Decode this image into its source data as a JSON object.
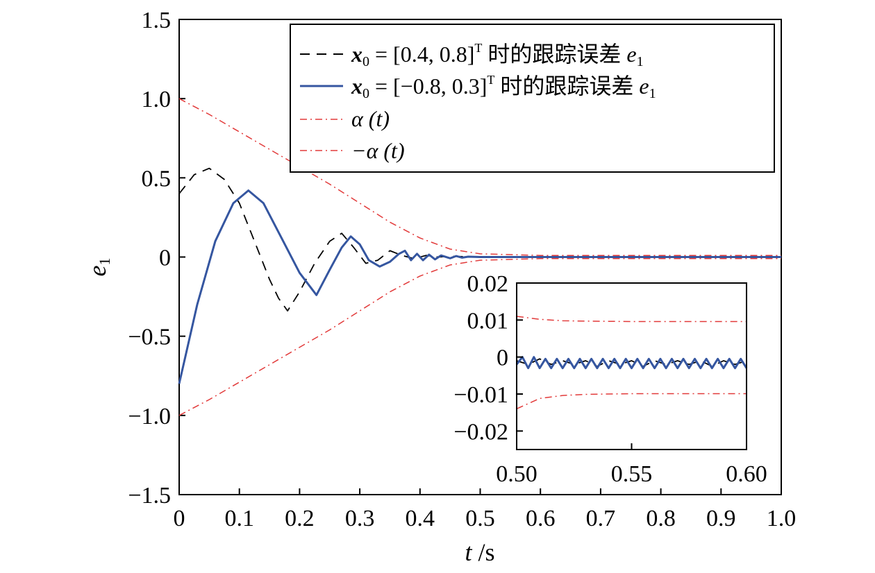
{
  "chart_data": [
    {
      "type": "line",
      "title": "",
      "xlabel": "t /s",
      "ylabel": "e1",
      "ylabel_main": "e",
      "ylabel_sub": "1",
      "xlabel_italic": "t",
      "xlabel_unit": " /s",
      "xlim": [
        0,
        1.0
      ],
      "ylim": [
        -1.5,
        1.5
      ],
      "xticks": [
        0,
        0.1,
        0.2,
        0.3,
        0.4,
        0.5,
        0.6,
        0.7,
        0.8,
        0.9,
        1.0
      ],
      "xtick_labels": [
        "0",
        "0.1",
        "0.2",
        "0.3",
        "0.4",
        "0.5",
        "0.6",
        "0.7",
        "0.8",
        "0.9",
        "1.0"
      ],
      "yticks": [
        1.5,
        1.0,
        0.5,
        0,
        -0.5,
        -1.0,
        -1.5
      ],
      "ytick_labels": [
        "1.5",
        "1.0",
        "0.5",
        "0",
        "−0.5",
        "−1.0",
        "−1.5"
      ],
      "grid": false,
      "legend_position": "top-right",
      "series": [
        {
          "name": "x0 = [0.4, 0.8]T 时的跟踪误差 e1",
          "legend": {
            "x": "x",
            "xsub": "0",
            "eq": " = [0.4, 0.8]",
            "sup": "T",
            "cn": " 时的跟踪误差 ",
            "e": "e",
            "esub": "1"
          },
          "color": "#000000",
          "style": "dashed",
          "x": [
            0,
            0.025,
            0.05,
            0.075,
            0.1,
            0.125,
            0.15,
            0.165,
            0.18,
            0.2,
            0.225,
            0.25,
            0.27,
            0.29,
            0.31,
            0.33,
            0.35,
            0.37,
            0.39,
            0.41,
            0.43,
            0.45,
            0.5,
            1.0
          ],
          "y": [
            0.4,
            0.52,
            0.56,
            0.49,
            0.34,
            0.1,
            -0.14,
            -0.26,
            -0.34,
            -0.22,
            -0.04,
            0.1,
            0.15,
            0.06,
            -0.04,
            -0.02,
            0.04,
            0.01,
            -0.01,
            0.01,
            0.0,
            0.005,
            0.0,
            0.0
          ]
        },
        {
          "name": "x0 = [−0.8, 0.3]T 时的跟踪误差 e1",
          "legend": {
            "x": "x",
            "xsub": "0",
            "eq": " = [−0.8, 0.3]",
            "sup": "T",
            "cn": " 时的跟踪误差 ",
            "e": "e",
            "esub": "1"
          },
          "color": "#3556a0",
          "style": "solid",
          "x": [
            0,
            0.03,
            0.06,
            0.09,
            0.115,
            0.14,
            0.17,
            0.2,
            0.228,
            0.25,
            0.27,
            0.285,
            0.3,
            0.315,
            0.333,
            0.35,
            0.365,
            0.375,
            0.385,
            0.395,
            0.405,
            0.415,
            0.425,
            0.435,
            0.45,
            0.46,
            0.47,
            0.48,
            0.5,
            1.0
          ],
          "y": [
            -0.8,
            -0.3,
            0.1,
            0.34,
            0.42,
            0.34,
            0.12,
            -0.1,
            -0.24,
            -0.08,
            0.06,
            0.13,
            0.08,
            -0.02,
            -0.06,
            -0.03,
            0.02,
            0.04,
            -0.02,
            0.02,
            -0.02,
            0.015,
            -0.015,
            0.01,
            -0.008,
            0.006,
            -0.004,
            0.002,
            0.0,
            0.0
          ]
        },
        {
          "name": "α (t)",
          "legend": {
            "text": "α (t)"
          },
          "color": "#e23a3a",
          "style": "dashdot",
          "x": [
            0,
            0.05,
            0.1,
            0.15,
            0.2,
            0.25,
            0.3,
            0.35,
            0.4,
            0.45,
            0.5,
            0.6,
            0.7,
            0.8,
            0.9,
            1.0
          ],
          "y": [
            1.0,
            0.9,
            0.79,
            0.68,
            0.57,
            0.46,
            0.34,
            0.22,
            0.12,
            0.05,
            0.02,
            0.01,
            0.01,
            0.01,
            0.01,
            0.01
          ]
        },
        {
          "name": "−α (t)",
          "legend": {
            "text": "−α (t)"
          },
          "color": "#e23a3a",
          "style": "dashdot",
          "x": [
            0,
            0.05,
            0.1,
            0.15,
            0.2,
            0.25,
            0.3,
            0.35,
            0.4,
            0.45,
            0.5,
            0.6,
            0.7,
            0.8,
            0.9,
            1.0
          ],
          "y": [
            -1.0,
            -0.9,
            -0.79,
            -0.68,
            -0.57,
            -0.46,
            -0.34,
            -0.22,
            -0.12,
            -0.05,
            -0.02,
            -0.01,
            -0.01,
            -0.01,
            -0.01,
            -0.01
          ]
        }
      ]
    },
    {
      "type": "line",
      "title": "",
      "inset": true,
      "xlim": [
        0.5,
        0.6
      ],
      "ylim": [
        -0.025,
        0.02
      ],
      "xticks": [
        0.5,
        0.55,
        0.6
      ],
      "xtick_labels": [
        "0.50",
        "0.55",
        "0.60"
      ],
      "yticks": [
        0.02,
        0.01,
        0,
        -0.01,
        -0.02
      ],
      "ytick_labels": [
        "0.02",
        "0.01",
        "0",
        "−0.01",
        "−0.02"
      ],
      "series": [
        {
          "color": "#000000",
          "style": "dashed",
          "x": [
            0.5,
            0.505,
            0.51,
            0.515,
            0.52,
            0.525,
            0.53,
            0.535,
            0.54,
            0.545,
            0.55,
            0.555,
            0.56,
            0.565,
            0.57,
            0.575,
            0.58,
            0.585,
            0.59,
            0.595,
            0.6
          ],
          "y": [
            -0.001,
            -0.002,
            -0.0005,
            -0.002,
            -0.001,
            -0.002,
            -0.001,
            -0.0025,
            -0.001,
            -0.002,
            -0.001,
            -0.0025,
            -0.001,
            -0.002,
            -0.001,
            -0.002,
            -0.001,
            -0.0025,
            -0.001,
            -0.002,
            -0.001
          ]
        },
        {
          "color": "#3556a0",
          "style": "solid",
          "x": [
            0.5,
            0.5025,
            0.505,
            0.5075,
            0.51,
            0.5125,
            0.515,
            0.5175,
            0.52,
            0.5225,
            0.525,
            0.5275,
            0.53,
            0.5325,
            0.535,
            0.5375,
            0.54,
            0.5425,
            0.545,
            0.5475,
            0.55,
            0.5525,
            0.555,
            0.5575,
            0.56,
            0.5625,
            0.565,
            0.5675,
            0.57,
            0.5725,
            0.575,
            0.5775,
            0.58,
            0.5825,
            0.585,
            0.5875,
            0.59,
            0.5925,
            0.595,
            0.5975,
            0.6
          ],
          "y": [
            -0.002,
            0.0,
            -0.003,
            0.0,
            -0.003,
            -0.0005,
            -0.003,
            -0.0005,
            -0.003,
            -0.0005,
            -0.003,
            -0.0005,
            -0.003,
            -0.0005,
            -0.003,
            -0.0005,
            -0.003,
            -0.0005,
            -0.003,
            -0.0005,
            -0.003,
            -0.0005,
            -0.003,
            -0.0005,
            -0.003,
            -0.0005,
            -0.003,
            -0.0005,
            -0.003,
            -0.0005,
            -0.003,
            -0.0005,
            -0.003,
            -0.0005,
            -0.003,
            -0.0005,
            -0.003,
            -0.0005,
            -0.003,
            -0.0005,
            -0.003
          ]
        },
        {
          "color": "#e23a3a",
          "style": "dashdot",
          "x": [
            0.5,
            0.51,
            0.52,
            0.53,
            0.55,
            0.6
          ],
          "y": [
            0.011,
            0.0102,
            0.0098,
            0.0097,
            0.0096,
            0.0096
          ]
        },
        {
          "color": "#e23a3a",
          "style": "dashdot",
          "x": [
            0.5,
            0.51,
            0.52,
            0.53,
            0.55,
            0.6
          ],
          "y": [
            -0.014,
            -0.0112,
            -0.0104,
            -0.0101,
            -0.0099,
            -0.0099
          ]
        }
      ]
    }
  ]
}
